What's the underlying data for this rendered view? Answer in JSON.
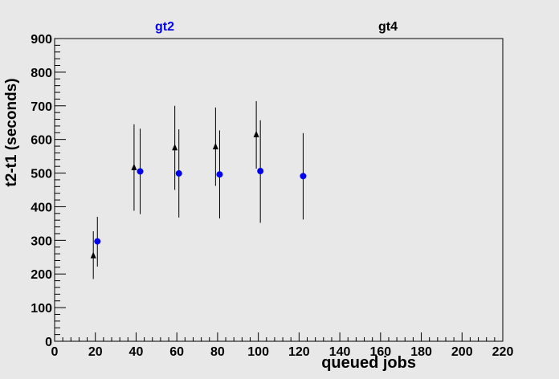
{
  "chart_data": {
    "type": "scatter",
    "xlabel": "queued jobs",
    "ylabel": "t2-t1 (seconds)",
    "xlim": [
      0,
      220
    ],
    "ylim": [
      0,
      900
    ],
    "x_ticks": [
      0,
      20,
      40,
      60,
      80,
      100,
      120,
      140,
      160,
      180,
      200,
      220
    ],
    "y_ticks": [
      0,
      100,
      200,
      300,
      400,
      500,
      600,
      700,
      800,
      900
    ],
    "grid": false,
    "legend_position": "top",
    "series": [
      {
        "name": "gt2",
        "marker": "circle",
        "color": "#0000ee",
        "points": [
          {
            "x": 21,
            "y": 297,
            "err_low": 222,
            "err_high": 370
          },
          {
            "x": 42,
            "y": 505,
            "err_low": 378,
            "err_high": 632
          },
          {
            "x": 61,
            "y": 499,
            "err_low": 368,
            "err_high": 630
          },
          {
            "x": 81,
            "y": 496,
            "err_low": 365,
            "err_high": 627
          },
          {
            "x": 101,
            "y": 506,
            "err_low": 352,
            "err_high": 657
          },
          {
            "x": 122,
            "y": 491,
            "err_low": 362,
            "err_high": 619
          }
        ]
      },
      {
        "name": "gt4",
        "marker": "triangle",
        "color": "#000000",
        "points": [
          {
            "x": 19,
            "y": 255,
            "err_low": 185,
            "err_high": 327
          },
          {
            "x": 39,
            "y": 517,
            "err_low": 388,
            "err_high": 645
          },
          {
            "x": 59,
            "y": 576,
            "err_low": 450,
            "err_high": 700
          },
          {
            "x": 79,
            "y": 579,
            "err_low": 462,
            "err_high": 695
          },
          {
            "x": 99,
            "y": 615,
            "err_low": 513,
            "err_high": 714
          }
        ]
      }
    ]
  }
}
